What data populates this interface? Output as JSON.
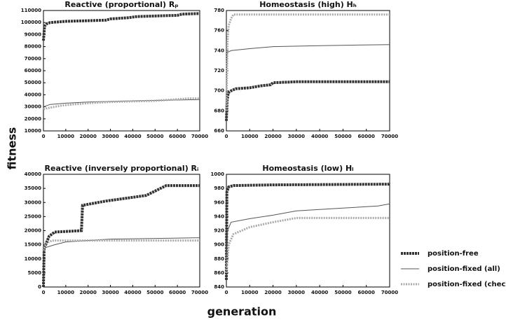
{
  "ylabel": "fitness",
  "xlabel": "generation",
  "chart_data": [
    {
      "type": "line",
      "title": "Reactive (proportional) Rₚ",
      "xlim": [
        0,
        70000
      ],
      "xticks": [
        0,
        10000,
        20000,
        30000,
        40000,
        50000,
        60000,
        70000
      ],
      "ylim": [
        10000,
        110000
      ],
      "yticks": [
        10000,
        20000,
        30000,
        40000,
        50000,
        60000,
        70000,
        80000,
        90000,
        100000,
        110000
      ],
      "series": [
        {
          "name": "position-free",
          "color": "#333333",
          "x": [
            0,
            500,
            1500,
            3000,
            10000,
            28000,
            30000,
            38000,
            42000,
            60000,
            62000,
            70000
          ],
          "values": [
            85000,
            97000,
            99000,
            100000,
            101000,
            102000,
            103000,
            104000,
            105000,
            106000,
            107000,
            107500
          ]
        },
        {
          "name": "position-fixed (all)",
          "color": "#555555",
          "x": [
            0,
            3000,
            10000,
            20000,
            40000,
            70000
          ],
          "values": [
            30000,
            32000,
            33000,
            34000,
            35000,
            36000
          ]
        },
        {
          "name": "position-fixed (checker)",
          "color": "#aaaaaa",
          "x": [
            0,
            2000,
            5000,
            8000,
            13000,
            20000,
            30000,
            50000,
            65000,
            70000
          ],
          "values": [
            28000,
            29000,
            30000,
            31000,
            32000,
            33000,
            34000,
            35000,
            37000,
            37000
          ]
        }
      ]
    },
    {
      "type": "line",
      "title": "Homeostasis (high) Hₕ",
      "xlim": [
        0,
        70000
      ],
      "xticks": [
        0,
        10000,
        20000,
        30000,
        40000,
        50000,
        60000,
        70000
      ],
      "ylim": [
        660,
        780
      ],
      "yticks": [
        660,
        680,
        700,
        720,
        740,
        760,
        780
      ],
      "series": [
        {
          "name": "position-free",
          "color": "#333333",
          "x": [
            0,
            300,
            800,
            2000,
            4000,
            10000,
            15000,
            19000,
            20000,
            30000,
            70000
          ],
          "values": [
            670,
            690,
            698,
            700,
            702,
            703,
            705,
            706,
            708,
            709,
            709
          ]
        },
        {
          "name": "position-fixed (all)",
          "color": "#555555",
          "x": [
            0,
            300,
            2000,
            10000,
            20000,
            40000,
            70000
          ],
          "values": [
            700,
            738,
            740,
            742,
            744,
            745,
            746
          ]
        },
        {
          "name": "position-fixed (checker)",
          "color": "#aaaaaa",
          "x": [
            0,
            500,
            1000,
            2000,
            3000,
            70000
          ],
          "values": [
            680,
            750,
            765,
            772,
            776,
            776
          ]
        }
      ]
    },
    {
      "type": "line",
      "title": "Reactive (inversely proportional) Rᵢ",
      "xlim": [
        0,
        70000
      ],
      "xticks": [
        0,
        10000,
        20000,
        30000,
        40000,
        50000,
        60000,
        70000
      ],
      "ylim": [
        0,
        40000
      ],
      "yticks": [
        0,
        5000,
        10000,
        15000,
        20000,
        25000,
        30000,
        35000,
        40000
      ],
      "series": [
        {
          "name": "position-free",
          "color": "#333333",
          "x": [
            0,
            300,
            1000,
            2500,
            5000,
            17000,
            17500,
            28000,
            46000,
            55000,
            70000
          ],
          "values": [
            0,
            14000,
            15000,
            18000,
            19500,
            20000,
            29000,
            30500,
            32500,
            36000,
            36000
          ]
        },
        {
          "name": "position-fixed (all)",
          "color": "#555555",
          "x": [
            0,
            1000,
            5000,
            10000,
            20000,
            30000,
            70000
          ],
          "values": [
            12000,
            14000,
            15000,
            16000,
            16500,
            17000,
            17500
          ]
        },
        {
          "name": "position-fixed (checker)",
          "color": "#aaaaaa",
          "x": [
            0,
            1000,
            4000,
            70000
          ],
          "values": [
            13000,
            15500,
            16500,
            16500
          ]
        }
      ]
    },
    {
      "type": "line",
      "title": "Homeostasis (low) Hₗ",
      "xlim": [
        0,
        70000
      ],
      "xticks": [
        0,
        10000,
        20000,
        30000,
        40000,
        50000,
        60000,
        70000
      ],
      "ylim": [
        840,
        1000
      ],
      "yticks": [
        840,
        860,
        880,
        900,
        920,
        940,
        960,
        980,
        1000
      ],
      "series": [
        {
          "name": "position-free",
          "color": "#333333",
          "x": [
            0,
            200,
            1000,
            3000,
            20000,
            69500,
            70000
          ],
          "values": [
            850,
            975,
            982,
            984,
            985,
            986,
            988
          ]
        },
        {
          "name": "position-fixed (all)",
          "color": "#555555",
          "x": [
            0,
            500,
            2000,
            10000,
            20000,
            30000,
            50000,
            65000,
            70000
          ],
          "values": [
            880,
            920,
            932,
            937,
            942,
            948,
            952,
            955,
            958
          ]
        },
        {
          "name": "position-fixed (checker)",
          "color": "#aaaaaa",
          "x": [
            0,
            1000,
            3000,
            10000,
            20000,
            25000,
            30000,
            70000
          ],
          "values": [
            860,
            900,
            915,
            925,
            932,
            935,
            938,
            938
          ]
        }
      ]
    }
  ]
}
